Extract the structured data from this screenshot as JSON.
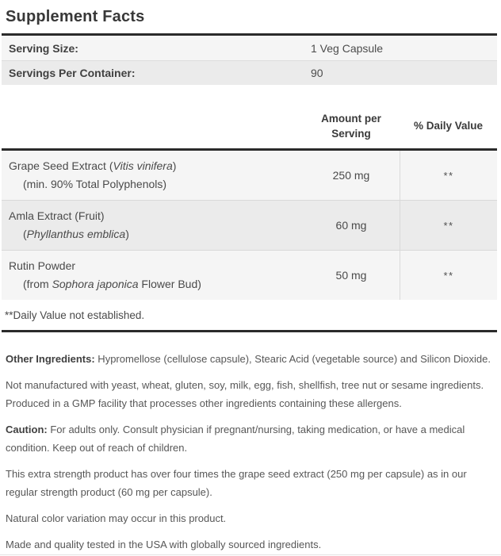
{
  "title": "Supplement Facts",
  "serving_rows": [
    {
      "label": "Serving Size:",
      "value": "1 Veg Capsule"
    },
    {
      "label": "Servings Per Container:",
      "value": "90"
    }
  ],
  "column_headers": {
    "amount_line1": "Amount per",
    "amount_line2": "Serving",
    "daily_value": "% Daily Value"
  },
  "ingredients": [
    {
      "name_line1": [
        {
          "text": "Grape Seed Extract (",
          "italic": false
        },
        {
          "text": "Vitis vinifera",
          "italic": true
        },
        {
          "text": ")",
          "italic": false
        }
      ],
      "name_line2": [
        {
          "text": "(min. 90% Total Polyphenols)",
          "italic": false
        }
      ],
      "amount": "250 mg",
      "daily_value": "**"
    },
    {
      "name_line1": [
        {
          "text": "Amla Extract (Fruit)",
          "italic": false
        }
      ],
      "name_line2": [
        {
          "text": "(",
          "italic": false
        },
        {
          "text": "Phyllanthus emblica",
          "italic": true
        },
        {
          "text": ")",
          "italic": false
        }
      ],
      "amount": "60 mg",
      "daily_value": "**"
    },
    {
      "name_line1": [
        {
          "text": "Rutin Powder",
          "italic": false
        }
      ],
      "name_line2": [
        {
          "text": "(from ",
          "italic": false
        },
        {
          "text": "Sophora japonica",
          "italic": true
        },
        {
          "text": " Flower Bud)",
          "italic": false
        }
      ],
      "amount": "50 mg",
      "daily_value": "**"
    }
  ],
  "footnote": "**Daily Value not established.",
  "paragraphs": [
    {
      "lead": "Other Ingredients:",
      "text": " Hypromellose (cellulose capsule), Stearic Acid (vegetable source) and Silicon Dioxide."
    },
    {
      "lead": "",
      "text": "Not manufactured with yeast, wheat, gluten, soy, milk, egg, fish, shellfish, tree nut or sesame ingredients. Produced in a GMP facility that processes other ingredients containing these allergens."
    },
    {
      "lead": "Caution:",
      "text": " For adults only. Consult physician if pregnant/nursing, taking medication, or have a medical condition. Keep out of reach of children."
    },
    {
      "lead": "",
      "text": "This extra strength product has over four times the grape seed extract (250 mg per capsule) as in our regular strength product (60 mg per capsule)."
    },
    {
      "lead": "",
      "text": "Natural color variation may occur in this product."
    },
    {
      "lead": "",
      "text": "Made and quality tested in the USA with globally sourced ingredients."
    }
  ],
  "colors": {
    "rule": "#2b2b2b",
    "row_light": "#f5f5f5",
    "row_dark": "#ebebeb",
    "divider": "#d9d9d9",
    "heading_text": "#383838",
    "body_text": "#575757"
  }
}
